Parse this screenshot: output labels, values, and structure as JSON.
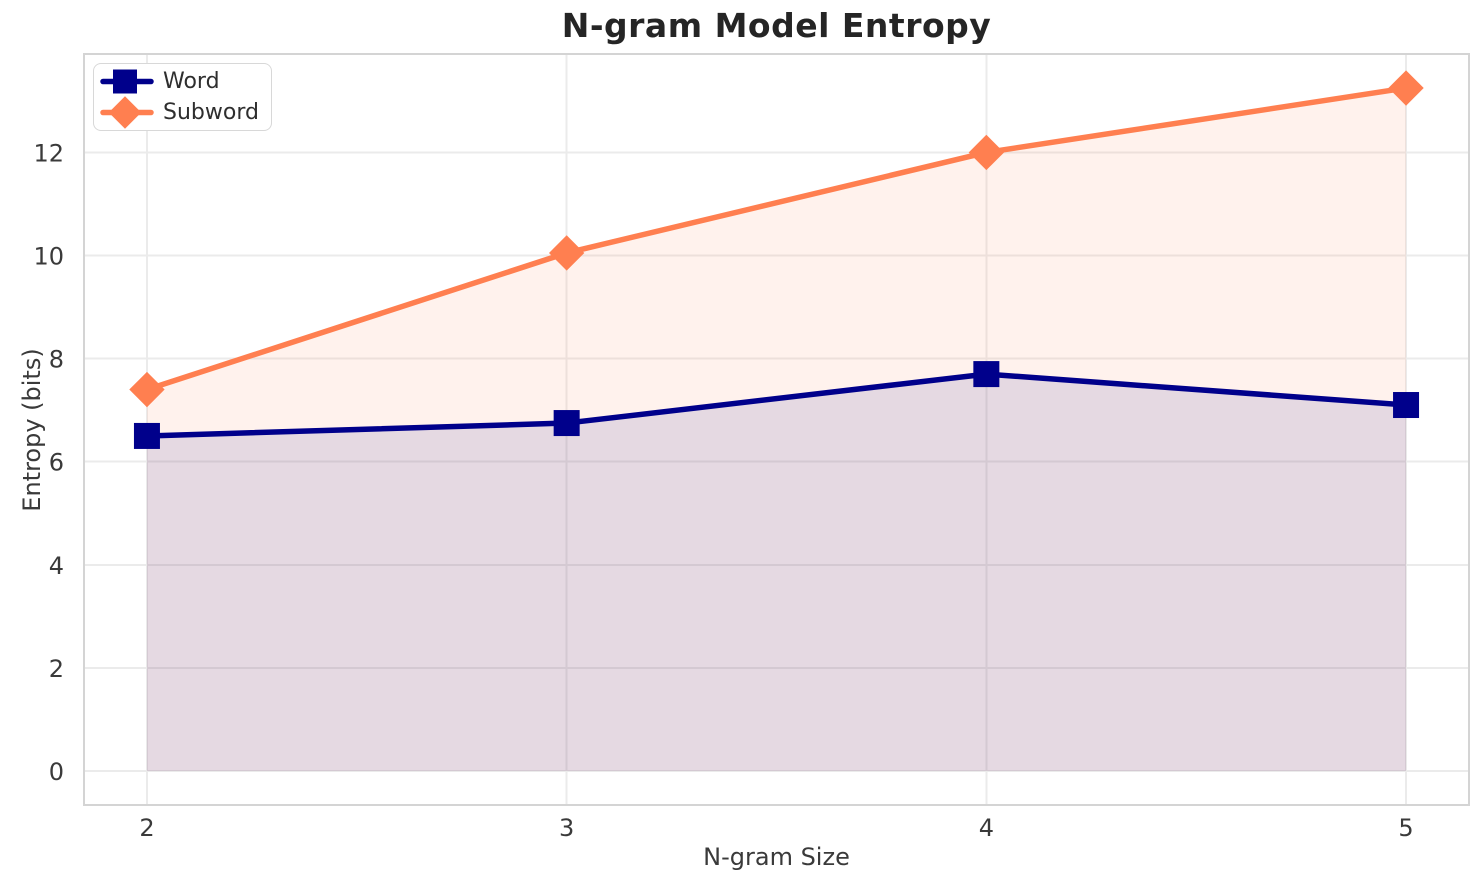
{
  "chart_data": {
    "type": "line",
    "title": "N-gram Model Entropy",
    "xlabel": "N-gram Size",
    "ylabel": "Entropy (bits)",
    "x": [
      2,
      3,
      4,
      5
    ],
    "series": [
      {
        "name": "Word",
        "values": [
          6.5,
          6.75,
          7.7,
          7.1
        ],
        "color": "#00008B",
        "marker": "square",
        "fill_to_zero": true,
        "fill_opacity": 0.1
      },
      {
        "name": "Subword",
        "values": [
          7.4,
          10.05,
          12.0,
          13.25
        ],
        "color": "#FF7F50",
        "marker": "diamond",
        "fill_to_zero": true,
        "fill_opacity": 0.1
      }
    ],
    "xticks": [
      2,
      3,
      4,
      5
    ],
    "yticks": [
      0,
      2,
      4,
      6,
      8,
      10,
      12
    ],
    "xlim": [
      1.85,
      5.15
    ],
    "ylim": [
      -0.66,
      13.91
    ],
    "grid": true,
    "legend": {
      "position": "upper left",
      "entries": [
        "Word",
        "Subword"
      ]
    },
    "colors": {
      "background": "#ffffff",
      "grid": "#ebebeb",
      "spine": "#d4d4d4",
      "tick_text": "#3a3a3a",
      "title_text": "#252525",
      "legend_border": "#d8d8d8",
      "legend_background": "#ffffff"
    }
  }
}
